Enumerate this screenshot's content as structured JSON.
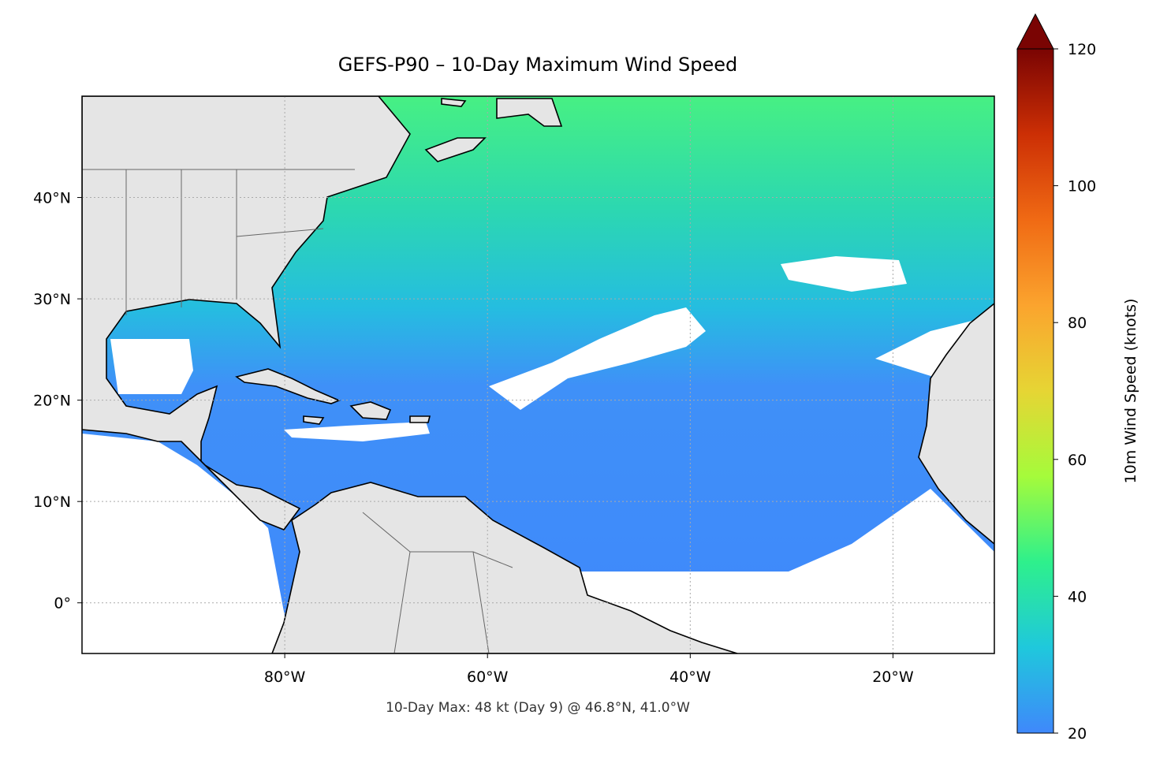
{
  "chart_data": {
    "type": "map",
    "title": "GEFS-P90 – 10-Day Maximum Wind Speed",
    "annotation": "10-Day Max: 48 kt (Day 9) @ 46.8°N, 41.0°W",
    "xlim": [
      -100,
      -10
    ],
    "ylim": [
      -5,
      50
    ],
    "xticks": [
      {
        "value": -80,
        "label": "80°W"
      },
      {
        "value": -60,
        "label": "60°W"
      },
      {
        "value": -40,
        "label": "40°W"
      },
      {
        "value": -20,
        "label": "20°W"
      }
    ],
    "yticks": [
      {
        "value": 0,
        "label": "0°"
      },
      {
        "value": 10,
        "label": "10°N"
      },
      {
        "value": 20,
        "label": "20°N"
      },
      {
        "value": 30,
        "label": "30°N"
      },
      {
        "value": 40,
        "label": "40°N"
      }
    ],
    "grid": true,
    "colorbar": {
      "label": "10m Wind Speed (knots)",
      "clim": [
        20,
        120
      ],
      "ticks": [
        20,
        40,
        60,
        80,
        100,
        120
      ],
      "extend": "max",
      "colors": [
        "#3f88fb",
        "#1fc8dc",
        "#2ef08c",
        "#a5fb3b",
        "#e6d534",
        "#fba42e",
        "#f06a14",
        "#cc2f05",
        "#7a0403"
      ]
    }
  }
}
